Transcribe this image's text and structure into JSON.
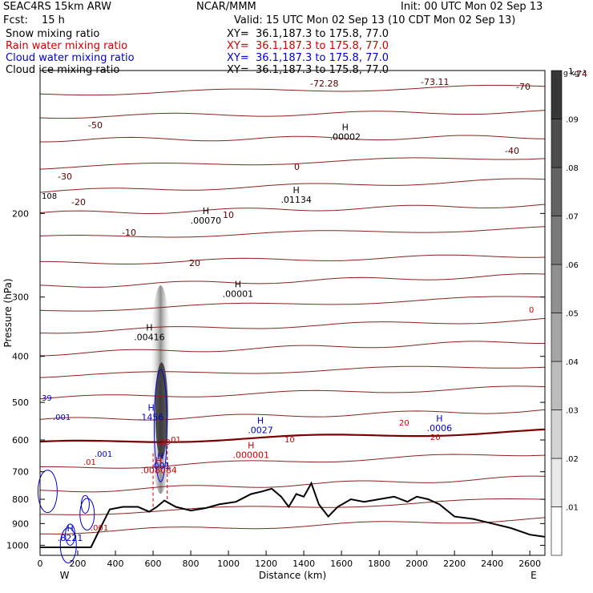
{
  "header": {
    "model": "SEAC4RS 15km ARW",
    "center": "NCAR/MMM",
    "init": "Init: 00 UTC Mon 02 Sep 13",
    "fcst_label": "Fcst:",
    "fcst_value": "15 h",
    "valid": "Valid: 15 UTC Mon 02 Sep 13 (10 CDT Mon 02 Sep 13)",
    "fields": [
      {
        "name": "Snow mixing ratio",
        "xy": "XY=  36.1,187.3 to 175.8, 77.0",
        "color": "#000000"
      },
      {
        "name": "Rain water mixing ratio",
        "xy": "XY=  36.1,187.3 to 175.8, 77.0",
        "color": "#d00000"
      },
      {
        "name": "Cloud water mixing ratio",
        "xy": "XY=  36.1,187.3 to 175.8, 77.0",
        "color": "#0000d0"
      },
      {
        "name": "Cloud ice mixing ratio",
        "xy": "XY=  36.1,187.3 to 175.8, 77.0",
        "color": "#000000"
      }
    ]
  },
  "chart_data": {
    "type": "cross-section contour",
    "xlabel": "Distance (km)",
    "ylabel": "Pressure (hPa)",
    "x_ticks": [
      0,
      200,
      400,
      600,
      800,
      1000,
      1200,
      1400,
      1600,
      1800,
      2000,
      2200,
      2400,
      2600
    ],
    "xlim": [
      0,
      2680
    ],
    "y_ticks": [
      200,
      300,
      400,
      500,
      600,
      700,
      800,
      900,
      1000
    ],
    "ylim": [
      1050,
      100
    ],
    "y_scale": "log",
    "x_end_labels": {
      "left": "W",
      "right": "E"
    },
    "colorbar": {
      "unit": "g kg⁻¹",
      "ticks": [
        ".01",
        ".02",
        ".03",
        ".04",
        ".05",
        ".06",
        ".07",
        ".08",
        ".09",
        ".1"
      ],
      "values": [
        0.01,
        0.02,
        0.03,
        0.04,
        0.05,
        0.06,
        0.07,
        0.08,
        0.09,
        0.1
      ]
    },
    "temperature_contours": [
      {
        "label": "-74",
        "level": -74
      },
      {
        "label": "-72.28",
        "level": -72.28
      },
      {
        "label": "-73.11",
        "level": -73.11
      },
      {
        "label": "-70",
        "level": -70
      },
      {
        "label": "-50",
        "level": -50
      },
      {
        "label": "-40",
        "level": -40
      },
      {
        "label": "-30",
        "level": -30
      },
      {
        "label": "-20",
        "level": -20
      },
      {
        "label": "-10",
        "level": -10
      },
      {
        "label": "0",
        "level": 0
      },
      {
        "label": "10",
        "level": 10
      },
      {
        "label": "20",
        "level": 20
      }
    ],
    "temperature_label_108": "108",
    "maxima": [
      {
        "label": "H",
        "value": ".00002",
        "x": 1620,
        "p": 140
      },
      {
        "label": "H",
        "value": ".01134",
        "x": 1360,
        "p": 190
      },
      {
        "label": "H",
        "value": ".00070",
        "x": 880,
        "p": 210
      },
      {
        "label": "H",
        "value": ".00001",
        "x": 1050,
        "p": 300
      },
      {
        "label": "H",
        "value": ".00416",
        "x": 580,
        "p": 370
      },
      {
        "label": "H",
        "value": ".1456",
        "x": 590,
        "p": 545,
        "color": "#0000d0"
      },
      {
        "label": "H",
        "value": ".0027",
        "x": 1170,
        "p": 580,
        "color": "#0000d0"
      },
      {
        "label": "H",
        "value": ".0006",
        "x": 2120,
        "p": 575,
        "color": "#0000d0"
      },
      {
        "label": "H",
        "value": ".000001",
        "x": 1120,
        "p": 655,
        "color": "#d00000"
      },
      {
        "label": "H",
        "value": ".001",
        "x": 640,
        "p": 690,
        "color": "#0000d0"
      },
      {
        "label": "H",
        "value": ".008084",
        "x": 630,
        "p": 705,
        "color": "#d00000"
      },
      {
        "label": "H",
        "value": ".8221",
        "x": 160,
        "p": 980,
        "color": "#0000d0"
      }
    ],
    "misc_labels": [
      {
        "text": "39",
        "color": "#0000d0"
      },
      {
        "text": ".001",
        "color": "#0000d0"
      },
      {
        "text": ".001",
        "color": "#0000d0"
      },
      {
        "text": ".01",
        "color": "#d00000"
      },
      {
        "text": ".001",
        "color": "#d00000"
      },
      {
        "text": ".01",
        "color": "#d00000"
      },
      {
        "text": "10",
        "color": "#d00000"
      },
      {
        "text": "20",
        "color": "#d00000"
      },
      {
        "text": "20",
        "color": "#d00000"
      },
      {
        "text": "20",
        "color": "#d00000"
      },
      {
        "text": "0",
        "color": "#d00000"
      }
    ],
    "terrain_profile": [
      [
        0,
        1010
      ],
      [
        270,
        1010
      ],
      [
        320,
        920
      ],
      [
        370,
        840
      ],
      [
        440,
        830
      ],
      [
        520,
        830
      ],
      [
        580,
        850
      ],
      [
        620,
        830
      ],
      [
        660,
        805
      ],
      [
        720,
        830
      ],
      [
        800,
        845
      ],
      [
        880,
        835
      ],
      [
        950,
        820
      ],
      [
        1040,
        810
      ],
      [
        1120,
        780
      ],
      [
        1180,
        770
      ],
      [
        1230,
        760
      ],
      [
        1280,
        790
      ],
      [
        1320,
        830
      ],
      [
        1360,
        780
      ],
      [
        1400,
        790
      ],
      [
        1440,
        740
      ],
      [
        1480,
        820
      ],
      [
        1530,
        870
      ],
      [
        1580,
        830
      ],
      [
        1650,
        800
      ],
      [
        1720,
        810
      ],
      [
        1800,
        800
      ],
      [
        1880,
        790
      ],
      [
        1950,
        810
      ],
      [
        2000,
        790
      ],
      [
        2060,
        800
      ],
      [
        2120,
        820
      ],
      [
        2200,
        870
      ],
      [
        2300,
        880
      ],
      [
        2400,
        900
      ],
      [
        2500,
        920
      ],
      [
        2600,
        950
      ],
      [
        2680,
        960
      ]
    ]
  }
}
